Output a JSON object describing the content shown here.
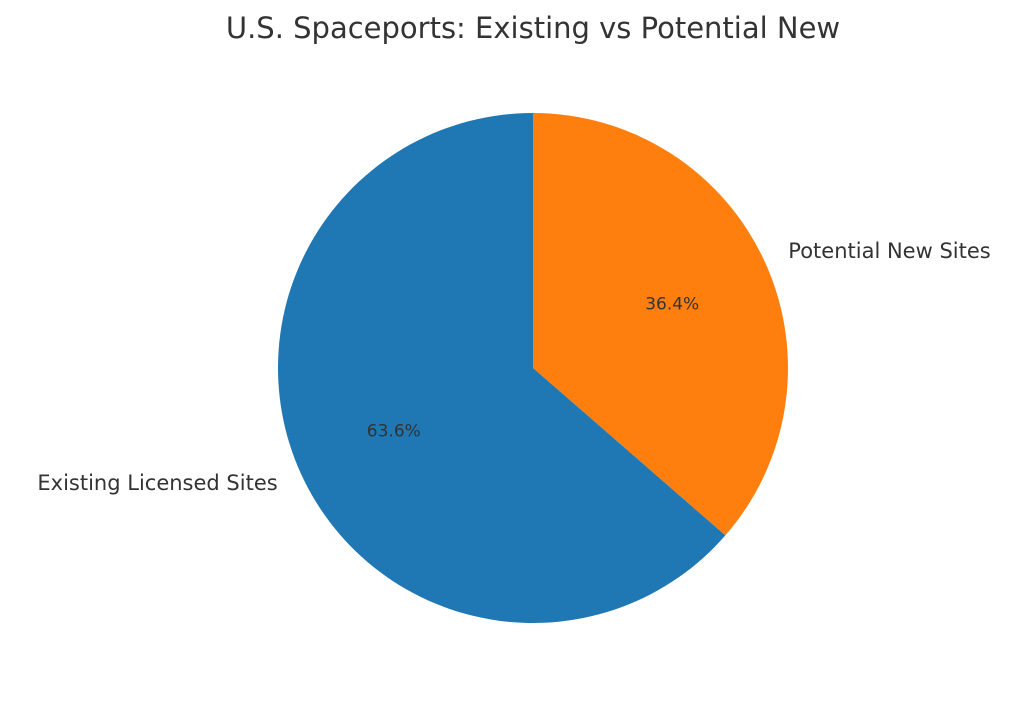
{
  "chart_data": {
    "type": "pie",
    "title": "U.S. Spaceports: Existing vs Potential New",
    "start_angle_deg": 90,
    "direction": "clockwise",
    "legend": "none",
    "slices": [
      {
        "label": "Potential New Sites",
        "value": 36.4,
        "pct_label": "36.4%",
        "color": "#ff7f0e"
      },
      {
        "label": "Existing Licensed Sites",
        "value": 63.6,
        "pct_label": "63.6%",
        "color": "#1f77b4"
      }
    ]
  }
}
